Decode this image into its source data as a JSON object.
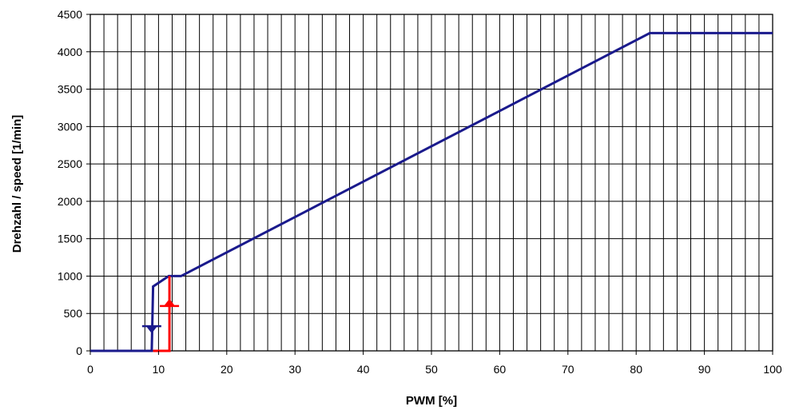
{
  "chart_data": {
    "type": "line",
    "title": "",
    "xlabel": "PWM [%]",
    "ylabel": "Drehzahl / speed [1/min]",
    "xlim": [
      0,
      100
    ],
    "ylim": [
      0,
      4500
    ],
    "x_ticks": [
      0,
      10,
      20,
      30,
      40,
      50,
      60,
      70,
      80,
      90,
      100
    ],
    "y_ticks": [
      0,
      500,
      1000,
      1500,
      2000,
      2500,
      3000,
      3500,
      4000,
      4500
    ],
    "x_minor_step": 2,
    "grid": true,
    "legend": "none",
    "series": [
      {
        "color": "#1a1a8c",
        "x": [
          0,
          9,
          9,
          9.2,
          11.5,
          13.3,
          82,
          100
        ],
        "y": [
          0,
          0,
          0,
          860,
          1000,
          1000,
          4250,
          4250
        ]
      },
      {
        "color": "#ff0000",
        "x": [
          9.2,
          11.6,
          11.6
        ],
        "y": [
          0,
          0,
          1000
        ]
      }
    ],
    "annotations": [
      {
        "kind": "arrow-down",
        "x": 9,
        "y": 330,
        "color": "#1a1a8c"
      },
      {
        "kind": "arrow-up",
        "x": 11.6,
        "y": 600,
        "color": "#ff0000"
      }
    ]
  }
}
